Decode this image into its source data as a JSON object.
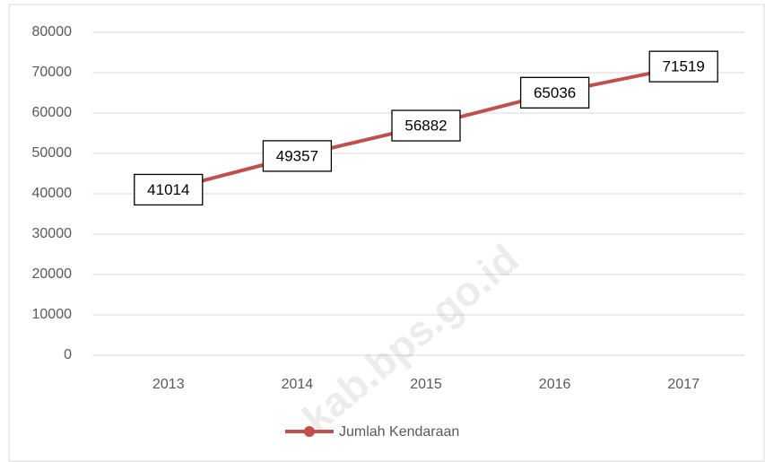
{
  "chart_data": {
    "type": "line",
    "categories": [
      "2013",
      "2014",
      "2015",
      "2016",
      "2017"
    ],
    "series": [
      {
        "name": "Jumlah Kendaraan",
        "color": "#c0504d",
        "values": [
          41014,
          49357,
          56882,
          65036,
          71519
        ]
      }
    ],
    "ylim": [
      0,
      80000
    ],
    "yticks": [
      0,
      10000,
      20000,
      30000,
      40000,
      50000,
      60000,
      70000,
      80000
    ],
    "grid": true,
    "legend": "bottom",
    "data_labels": true,
    "watermark": "kab.bps.go.id"
  }
}
